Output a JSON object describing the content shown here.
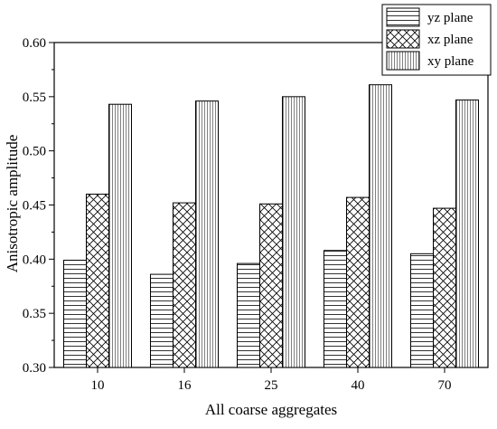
{
  "chart_data": {
    "type": "bar",
    "title": "",
    "xlabel": "All coarse aggregates",
    "ylabel": "Anisotropic amplitude",
    "categories": [
      "10",
      "16",
      "25",
      "40",
      "70"
    ],
    "ylim": [
      0.3,
      0.6
    ],
    "yticks": [
      "0.30",
      "0.35",
      "0.40",
      "0.45",
      "0.50",
      "0.55",
      "0.60"
    ],
    "legend_position": "top-right",
    "grid": false,
    "series": [
      {
        "name": "yz plane",
        "pattern": "horizontal-lines",
        "values": [
          0.399,
          0.386,
          0.396,
          0.408,
          0.405
        ]
      },
      {
        "name": "xz plane",
        "pattern": "cross-hatch",
        "values": [
          0.46,
          0.452,
          0.451,
          0.457,
          0.447
        ]
      },
      {
        "name": "xy plane",
        "pattern": "vertical-lines",
        "values": [
          0.543,
          0.546,
          0.55,
          0.561,
          0.547
        ]
      }
    ]
  }
}
